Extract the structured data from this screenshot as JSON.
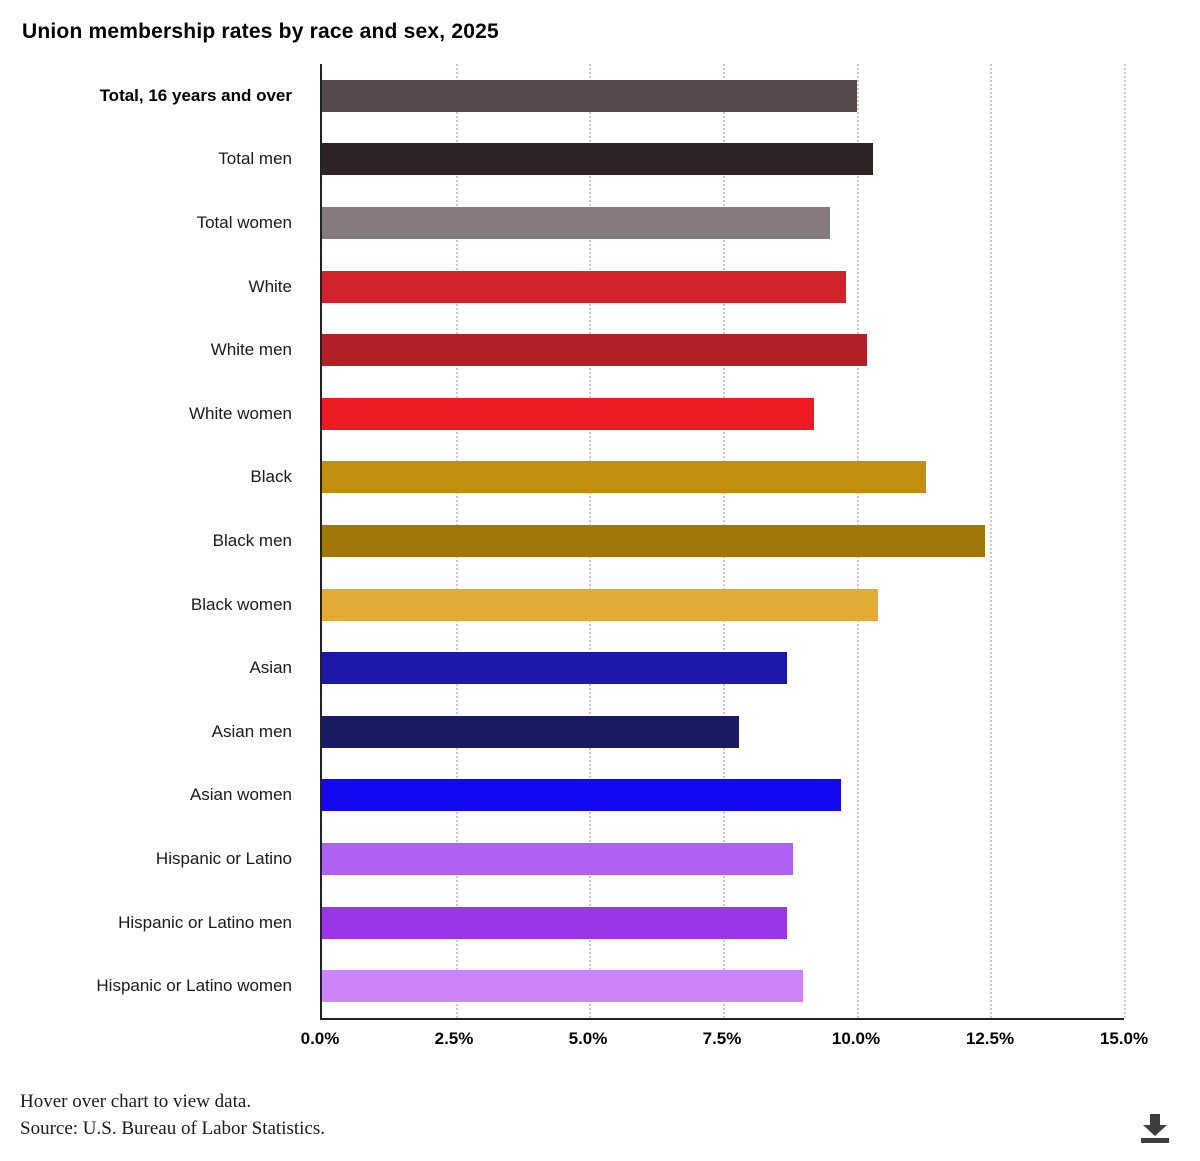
{
  "page": {
    "title": "Union membership rates by race and sex, 2025",
    "footer_hint": "Hover over chart to view data.",
    "footer_source": "Source: U.S. Bureau of Labor Statistics.",
    "download_tooltip": "Download"
  },
  "chart_data": {
    "type": "bar",
    "orientation": "horizontal",
    "title": "Union membership rates by race and sex, 2025",
    "categories": [
      "Total, 16 years and over",
      "Total men",
      "Total women",
      "White",
      "White men",
      "White women",
      "Black",
      "Black men",
      "Black women",
      "Asian",
      "Asian men",
      "Asian women",
      "Hispanic or Latino",
      "Hispanic or Latino men",
      "Hispanic or Latino women"
    ],
    "values": [
      10.0,
      10.3,
      9.5,
      9.8,
      10.2,
      9.2,
      11.3,
      12.4,
      10.4,
      8.7,
      7.8,
      9.7,
      8.8,
      8.7,
      9.0
    ],
    "colors": [
      "#574a4c",
      "#2b2324",
      "#867a7c",
      "#d2232a",
      "#b22025",
      "#ee1b24",
      "#c18e10",
      "#a07708",
      "#e2ab35",
      "#1c19aa",
      "#1b1b63",
      "#1408f0",
      "#b161f2",
      "#9a35e8",
      "#cd85f8"
    ],
    "unit": "%",
    "xlabel": "",
    "ylabel": "",
    "xlim": [
      0,
      15
    ],
    "x_ticks": [
      0,
      2.5,
      5,
      7.5,
      10,
      12.5,
      15
    ],
    "x_tick_labels": [
      "0.0%",
      "2.5%",
      "5.0%",
      "7.5%",
      "10.0%",
      "12.5%",
      "15.0%"
    ],
    "grid": "vertical-dotted",
    "legend": "none"
  }
}
